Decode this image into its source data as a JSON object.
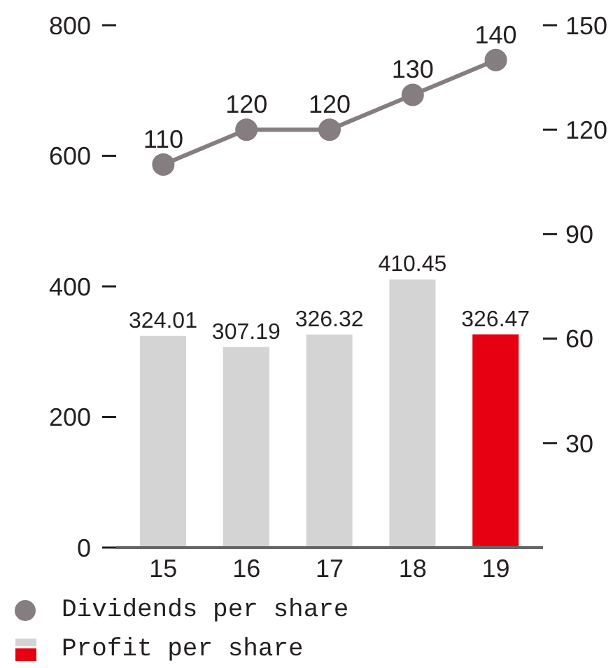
{
  "chart_data": {
    "type": "bar",
    "categories": [
      "15",
      "16",
      "17",
      "18",
      "19"
    ],
    "series": [
      {
        "name": "Dividends per share",
        "type": "line",
        "axis": "y2",
        "color": "#857d80",
        "values": [
          110,
          120,
          120,
          130,
          140
        ]
      },
      {
        "name": "Profit per share",
        "colors": [
          "#d4d4d4",
          "#d4d4d4",
          "#d4d4d4",
          "#d4d4d4",
          "#e60012"
        ],
        "values": [
          324.01,
          307.19,
          326.32,
          410.45,
          326.47
        ]
      }
    ],
    "ylim": [
      0,
      800
    ],
    "yticks": [
      0,
      200,
      400,
      600,
      800
    ],
    "y2lim": [
      0,
      150
    ],
    "y2ticks": [
      30,
      60,
      90,
      120,
      150
    ],
    "marker": "circle",
    "data_labels": true,
    "legend": "bottom left"
  }
}
